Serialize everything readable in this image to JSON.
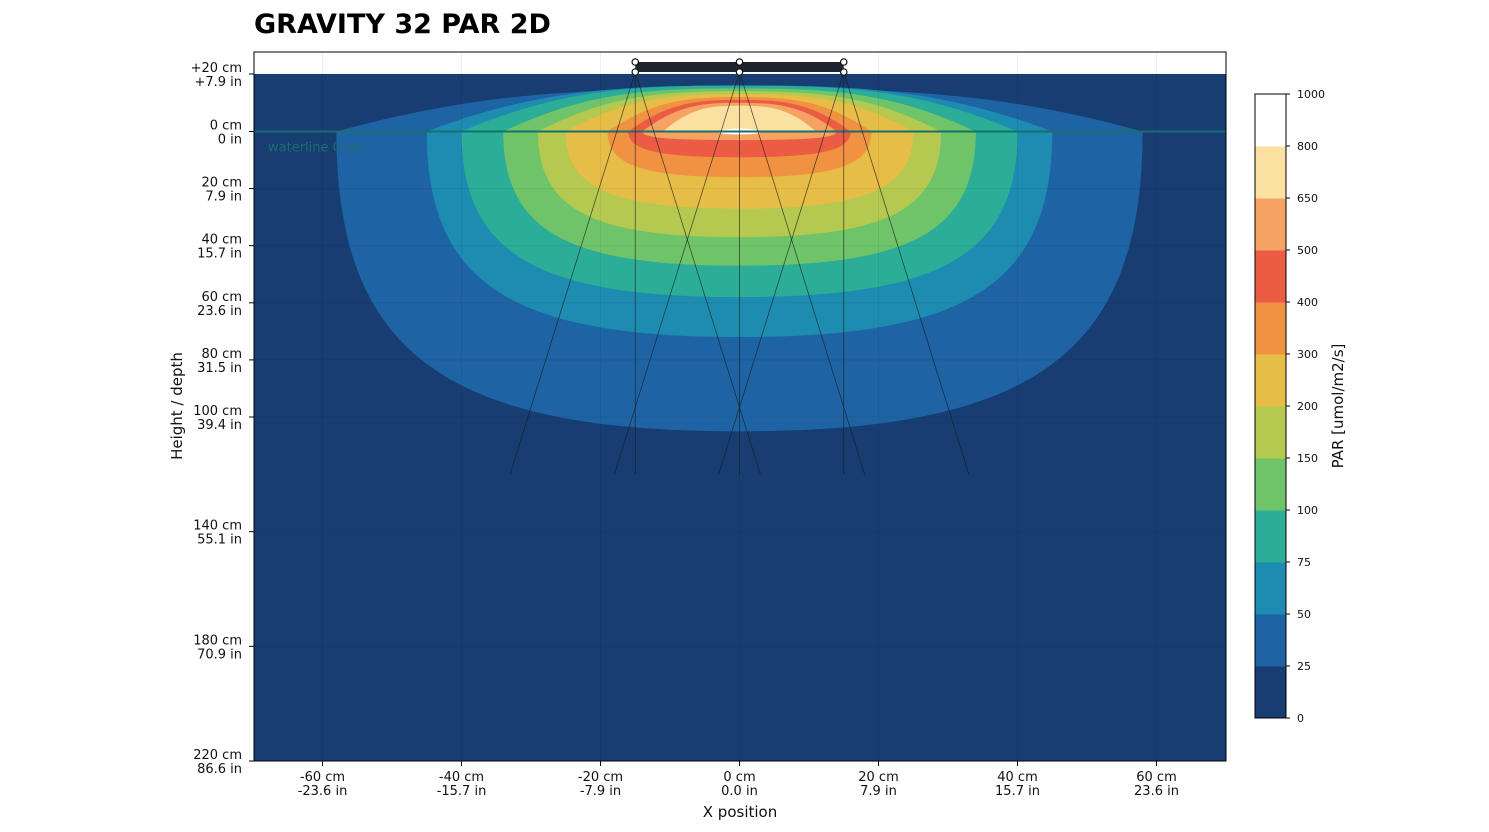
{
  "chart_data": {
    "type": "heatmap",
    "title": "GRAVITY 32 PAR 2D",
    "xlabel": "X position",
    "ylabel": "Height / depth",
    "xlim": [
      -70,
      70
    ],
    "ylim": [
      -20,
      220
    ],
    "x_ticks": [
      {
        "value": -60,
        "cm": "-60 cm",
        "in": "-23.6 in"
      },
      {
        "value": -40,
        "cm": "-40 cm",
        "in": "-15.7 in"
      },
      {
        "value": -20,
        "cm": "-20 cm",
        "in": "-7.9 in"
      },
      {
        "value": 0,
        "cm": "0 cm",
        "in": "0.0 in"
      },
      {
        "value": 20,
        "cm": "20 cm",
        "in": "7.9 in"
      },
      {
        "value": 40,
        "cm": "40 cm",
        "in": "15.7 in"
      },
      {
        "value": 60,
        "cm": "60 cm",
        "in": "23.6 in"
      }
    ],
    "y_ticks": [
      {
        "value": -20,
        "cm": "+20 cm",
        "in": "+7.9 in"
      },
      {
        "value": 0,
        "cm": "0 cm",
        "in": "0 in"
      },
      {
        "value": 20,
        "cm": "20 cm",
        "in": "7.9 in"
      },
      {
        "value": 40,
        "cm": "40 cm",
        "in": "15.7 in"
      },
      {
        "value": 60,
        "cm": "60 cm",
        "in": "23.6 in"
      },
      {
        "value": 80,
        "cm": "80 cm",
        "in": "31.5 in"
      },
      {
        "value": 100,
        "cm": "100 cm",
        "in": "39.4 in"
      },
      {
        "value": 140,
        "cm": "140 cm",
        "in": "55.1 in"
      },
      {
        "value": 180,
        "cm": "180 cm",
        "in": "70.9 in"
      },
      {
        "value": 220,
        "cm": "220 cm",
        "in": "86.6 in"
      }
    ],
    "waterline": {
      "depth": 0,
      "label": "waterline 0 cm",
      "color": "#17706c"
    },
    "fixture": {
      "x_range": [
        -15,
        15
      ],
      "height": -20,
      "nodes_x": [
        -15,
        0,
        15
      ],
      "color": "#1c2530"
    },
    "beam_cones": [
      {
        "origin_x": -15,
        "spread_x": [
          -33,
          3
        ],
        "end_depth": 120
      },
      {
        "origin_x": 0,
        "spread_x": [
          -18,
          18
        ],
        "end_depth": 120
      },
      {
        "origin_x": 15,
        "spread_x": [
          -3,
          33
        ],
        "end_depth": 120
      }
    ],
    "colorbar": {
      "label": "PAR [umol/m2/s]",
      "levels": [
        0,
        25,
        50,
        75,
        100,
        150,
        200,
        300,
        400,
        500,
        650,
        800,
        1000
      ],
      "colors": [
        "#173d73",
        "#1e63a3",
        "#1e8cb0",
        "#2bad97",
        "#6fc46a",
        "#b5c951",
        "#e6bd47",
        "#f09242",
        "#ec5c44",
        "#f5a262",
        "#fae1a1",
        "#ffffff"
      ]
    },
    "contours": [
      {
        "level": 25,
        "x_range": [
          -58,
          58
        ],
        "top_depth": -15,
        "bottom_depth": 105
      },
      {
        "level": 50,
        "x_range": [
          -45,
          45
        ],
        "top_depth": -16,
        "bottom_depth": 72
      },
      {
        "level": 75,
        "x_range": [
          -40,
          40
        ],
        "top_depth": -16,
        "bottom_depth": 58
      },
      {
        "level": 100,
        "x_range": [
          -34,
          34
        ],
        "top_depth": -15,
        "bottom_depth": 47
      },
      {
        "level": 150,
        "x_range": [
          -29,
          29
        ],
        "top_depth": -14,
        "bottom_depth": 37
      },
      {
        "level": 200,
        "x_range": [
          -25,
          25
        ],
        "top_depth": -13,
        "bottom_depth": 27
      },
      {
        "level": 300,
        "x_range": [
          -19,
          19
        ],
        "top_depth": -12,
        "bottom_depth": 16
      },
      {
        "level": 400,
        "x_range": [
          -16,
          16
        ],
        "top_depth": -11,
        "bottom_depth": 9
      },
      {
        "level": 500,
        "x_range": [
          -14,
          14
        ],
        "top_depth": -10,
        "bottom_depth": 3
      },
      {
        "level": 650,
        "x_range": [
          -11,
          11
        ],
        "top_depth": -9,
        "bottom_depth": 0
      },
      {
        "level": 800,
        "x_range": [
          -3,
          3
        ],
        "top_depth": -1,
        "bottom_depth": 1
      }
    ],
    "grid": true
  }
}
